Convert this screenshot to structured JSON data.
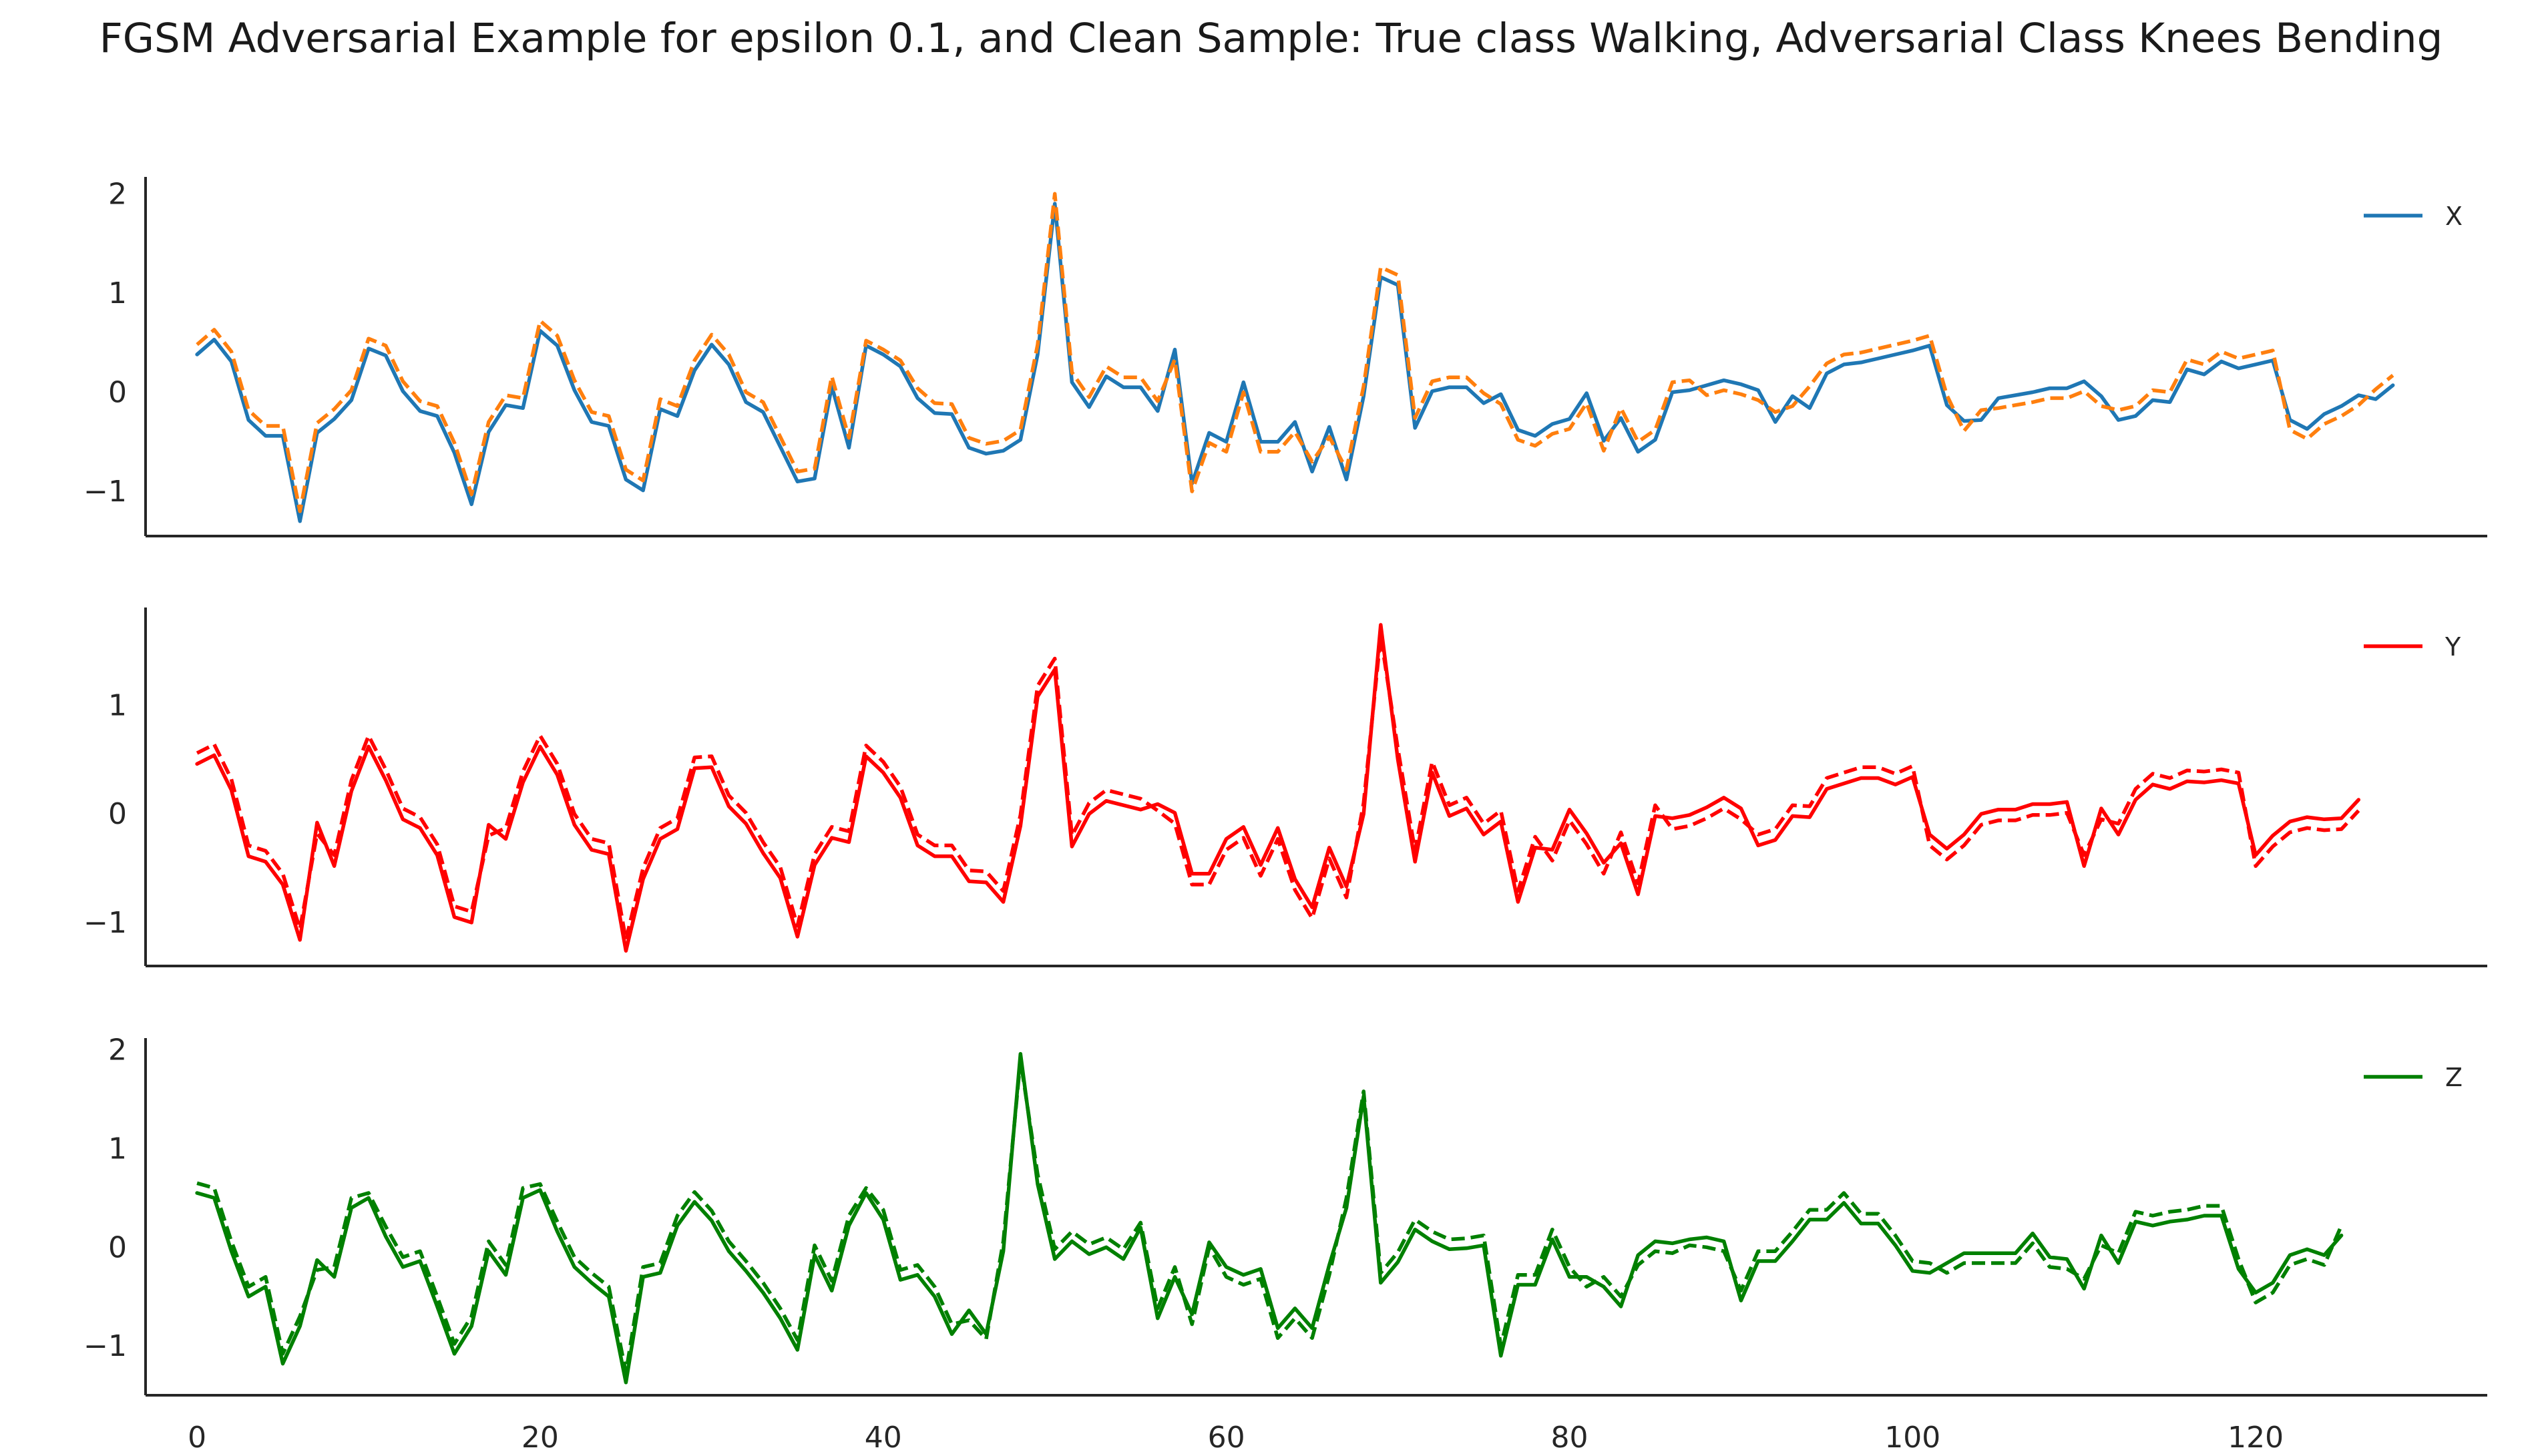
{
  "title": "FGSM Adversarial Example for epsilon 0.1, and Clean Sample: True class Walking, Adversarial Class Knees Bending",
  "chart_data": [
    {
      "type": "line",
      "legend_label": "X",
      "legend_position": "top-right",
      "grid": false,
      "xlim": [
        -3,
        133.5
      ],
      "ylim": [
        -1.45,
        2.17
      ],
      "xticks": [
        0,
        20,
        40,
        60,
        80,
        100,
        120
      ],
      "show_xtick_labels": false,
      "yticks": [
        -1,
        0,
        1,
        2
      ],
      "ytick_labels": [
        "−1",
        "0",
        "1",
        "2"
      ],
      "clean_color": "#1f77b4",
      "adversarial_color": "#ff7f0e",
      "clean": [
        0.38,
        0.53,
        0.31,
        -0.28,
        -0.44,
        -0.44,
        -1.3,
        -0.41,
        -0.27,
        -0.08,
        0.44,
        0.37,
        0.01,
        -0.19,
        -0.24,
        -0.61,
        -1.13,
        -0.4,
        -0.13,
        -0.16,
        0.62,
        0.47,
        0.02,
        -0.3,
        -0.34,
        -0.88,
        -0.99,
        -0.17,
        -0.24,
        0.22,
        0.48,
        0.28,
        -0.1,
        -0.2,
        -0.55,
        -0.9,
        -0.87,
        0.06,
        -0.56,
        0.47,
        0.38,
        0.26,
        -0.06,
        -0.21,
        -0.22,
        -0.56,
        -0.62,
        -0.59,
        -0.48,
        0.38,
        1.9,
        0.1,
        -0.15,
        0.16,
        0.05,
        0.05,
        -0.19,
        0.43,
        -0.92,
        -0.41,
        -0.5,
        0.1,
        -0.5,
        -0.5,
        -0.3,
        -0.8,
        -0.35,
        -0.88,
        -0.04,
        1.16,
        1.08,
        -0.36,
        0.01,
        0.05,
        0.05,
        -0.11,
        -0.02,
        -0.38,
        -0.44,
        -0.32,
        -0.27,
        -0.01,
        -0.49,
        -0.26,
        -0.6,
        -0.48,
        0.0,
        0.02,
        0.07,
        0.12,
        0.08,
        0.02,
        -0.3,
        -0.04,
        -0.16,
        0.19,
        0.28,
        0.3,
        0.34,
        0.38,
        0.42,
        0.47,
        -0.13,
        -0.29,
        -0.28,
        -0.06,
        -0.03,
        0.0,
        0.04,
        0.04,
        0.11,
        -0.04,
        -0.28,
        -0.24,
        -0.08,
        -0.1,
        0.23,
        0.18,
        0.31,
        0.24,
        0.28,
        0.32,
        -0.28,
        -0.37,
        -0.22,
        -0.14,
        -0.03,
        -0.07,
        0.07
      ],
      "adversarial": [
        0.48,
        0.63,
        0.41,
        -0.18,
        -0.34,
        -0.34,
        -1.2,
        -0.31,
        -0.17,
        0.02,
        0.54,
        0.47,
        0.11,
        -0.09,
        -0.14,
        -0.51,
        -1.03,
        -0.3,
        -0.03,
        -0.06,
        0.72,
        0.57,
        0.12,
        -0.2,
        -0.24,
        -0.78,
        -0.89,
        -0.07,
        -0.14,
        0.32,
        0.58,
        0.38,
        0.0,
        -0.1,
        -0.45,
        -0.8,
        -0.77,
        0.16,
        -0.46,
        0.52,
        0.43,
        0.32,
        0.04,
        -0.11,
        -0.12,
        -0.46,
        -0.52,
        -0.49,
        -0.38,
        0.48,
        2.0,
        0.2,
        -0.05,
        0.26,
        0.15,
        0.15,
        -0.09,
        0.33,
        -1.0,
        -0.51,
        -0.6,
        0.0,
        -0.6,
        -0.6,
        -0.4,
        -0.7,
        -0.45,
        -0.78,
        0.06,
        1.26,
        1.18,
        -0.26,
        0.11,
        0.15,
        0.15,
        -0.01,
        -0.12,
        -0.48,
        -0.54,
        -0.42,
        -0.37,
        -0.11,
        -0.59,
        -0.16,
        -0.5,
        -0.38,
        0.1,
        0.12,
        -0.03,
        0.02,
        -0.02,
        -0.08,
        -0.2,
        -0.14,
        0.06,
        0.29,
        0.38,
        0.4,
        0.44,
        0.48,
        0.52,
        0.57,
        -0.03,
        -0.39,
        -0.18,
        -0.16,
        -0.13,
        -0.1,
        -0.06,
        -0.06,
        0.01,
        -0.14,
        -0.18,
        -0.14,
        0.02,
        0.0,
        0.33,
        0.28,
        0.41,
        0.34,
        0.38,
        0.42,
        -0.38,
        -0.47,
        -0.32,
        -0.24,
        -0.13,
        0.03,
        0.17
      ]
    },
    {
      "type": "line",
      "legend_label": "Y",
      "legend_position": "top-right",
      "grid": false,
      "xlim": [
        -3,
        133.5
      ],
      "ylim": [
        -1.4,
        1.9
      ],
      "xticks": [
        0,
        20,
        40,
        60,
        80,
        100,
        120
      ],
      "show_xtick_labels": false,
      "yticks": [
        -1,
        0,
        1
      ],
      "ytick_labels": [
        "−1",
        "0",
        "1"
      ],
      "clean_color": "#ff0000",
      "adversarial_color": "#ff0000",
      "clean": [
        0.46,
        0.54,
        0.22,
        -0.39,
        -0.44,
        -0.65,
        -1.16,
        -0.08,
        -0.48,
        0.21,
        0.62,
        0.31,
        -0.05,
        -0.13,
        -0.38,
        -0.95,
        -1.0,
        -0.1,
        -0.23,
        0.29,
        0.62,
        0.36,
        -0.1,
        -0.33,
        -0.37,
        -1.26,
        -0.6,
        -0.23,
        -0.14,
        0.42,
        0.43,
        0.07,
        -0.09,
        -0.36,
        -0.59,
        -1.13,
        -0.47,
        -0.22,
        -0.26,
        0.53,
        0.38,
        0.15,
        -0.29,
        -0.39,
        -0.39,
        -0.62,
        -0.63,
        -0.81,
        -0.11,
        1.08,
        1.33,
        -0.3,
        0.0,
        0.12,
        0.08,
        0.04,
        0.09,
        0.01,
        -0.55,
        -0.55,
        -0.23,
        -0.12,
        -0.47,
        -0.13,
        -0.6,
        -0.86,
        -0.31,
        -0.67,
        0.0,
        1.74,
        0.5,
        -0.44,
        0.38,
        -0.02,
        0.05,
        -0.19,
        -0.07,
        -0.81,
        -0.31,
        -0.33,
        0.04,
        -0.18,
        -0.45,
        -0.27,
        -0.74,
        -0.02,
        -0.04,
        -0.01,
        0.06,
        0.15,
        0.05,
        -0.29,
        -0.24,
        -0.02,
        -0.03,
        0.23,
        0.28,
        0.33,
        0.33,
        0.27,
        0.34,
        -0.19,
        -0.32,
        -0.19,
        0.0,
        0.04,
        0.04,
        0.09,
        0.09,
        0.11,
        -0.48,
        0.05,
        -0.19,
        0.13,
        0.27,
        0.23,
        0.3,
        0.29,
        0.31,
        0.28,
        -0.38,
        -0.2,
        -0.07,
        -0.03,
        -0.05,
        -0.04,
        0.13
      ],
      "adversarial": [
        0.56,
        0.64,
        0.32,
        -0.29,
        -0.34,
        -0.55,
        -1.06,
        -0.18,
        -0.38,
        0.31,
        0.72,
        0.41,
        0.05,
        -0.03,
        -0.28,
        -0.85,
        -0.9,
        -0.2,
        -0.13,
        0.39,
        0.72,
        0.46,
        0.0,
        -0.23,
        -0.27,
        -1.16,
        -0.5,
        -0.13,
        -0.04,
        0.52,
        0.53,
        0.17,
        0.01,
        -0.26,
        -0.49,
        -1.03,
        -0.37,
        -0.12,
        -0.16,
        0.63,
        0.48,
        0.25,
        -0.19,
        -0.29,
        -0.29,
        -0.52,
        -0.53,
        -0.71,
        -0.01,
        1.18,
        1.43,
        -0.2,
        0.1,
        0.22,
        0.18,
        0.14,
        0.03,
        -0.09,
        -0.65,
        -0.65,
        -0.33,
        -0.22,
        -0.57,
        -0.23,
        -0.7,
        -0.96,
        -0.41,
        -0.77,
        0.1,
        1.64,
        0.6,
        -0.34,
        0.48,
        0.08,
        0.15,
        -0.09,
        0.03,
        -0.71,
        -0.21,
        -0.43,
        -0.06,
        -0.28,
        -0.55,
        -0.17,
        -0.64,
        0.08,
        -0.14,
        -0.11,
        -0.04,
        0.05,
        -0.05,
        -0.19,
        -0.14,
        0.08,
        0.07,
        0.33,
        0.38,
        0.43,
        0.43,
        0.37,
        0.44,
        -0.29,
        -0.42,
        -0.29,
        -0.1,
        -0.06,
        -0.06,
        -0.01,
        -0.01,
        0.01,
        -0.38,
        -0.05,
        -0.09,
        0.23,
        0.37,
        0.33,
        0.4,
        0.39,
        0.41,
        0.38,
        -0.48,
        -0.3,
        -0.17,
        -0.13,
        -0.15,
        -0.14,
        0.03
      ]
    },
    {
      "type": "line",
      "legend_label": "Z",
      "legend_position": "top-right",
      "grid": false,
      "xlim": [
        -3,
        133.5
      ],
      "ylim": [
        -1.5,
        2.12
      ],
      "xticks": [
        0,
        20,
        40,
        60,
        80,
        100,
        120
      ],
      "show_xtick_labels": true,
      "xtick_labels": [
        "0",
        "20",
        "40",
        "60",
        "80",
        "100",
        "120"
      ],
      "yticks": [
        -1,
        0,
        1,
        2
      ],
      "ytick_labels": [
        "−1",
        "0",
        "1",
        "2"
      ],
      "clean_color": "#008000",
      "adversarial_color": "#008000",
      "clean": [
        0.55,
        0.5,
        -0.04,
        -0.5,
        -0.4,
        -1.18,
        -0.8,
        -0.13,
        -0.3,
        0.4,
        0.5,
        0.11,
        -0.2,
        -0.14,
        -0.6,
        -1.08,
        -0.8,
        -0.04,
        -0.28,
        0.5,
        0.58,
        0.16,
        -0.2,
        -0.36,
        -0.5,
        -1.37,
        -0.3,
        -0.26,
        0.22,
        0.46,
        0.27,
        -0.04,
        -0.24,
        -0.46,
        -0.72,
        -1.04,
        -0.08,
        -0.44,
        0.22,
        0.55,
        0.28,
        -0.33,
        -0.28,
        -0.5,
        -0.88,
        -0.64,
        -0.88,
        -0.04,
        1.96,
        0.64,
        -0.12,
        0.06,
        -0.07,
        0.0,
        -0.12,
        0.2,
        -0.72,
        -0.3,
        -0.68,
        0.05,
        -0.2,
        -0.28,
        -0.22,
        -0.82,
        -0.62,
        -0.82,
        -0.18,
        0.4,
        1.53,
        -0.36,
        -0.15,
        0.18,
        0.06,
        -0.02,
        -0.01,
        0.02,
        -1.1,
        -0.38,
        -0.38,
        0.08,
        -0.3,
        -0.3,
        -0.4,
        -0.6,
        -0.08,
        0.06,
        0.04,
        0.08,
        0.1,
        0.06,
        -0.54,
        -0.14,
        -0.14,
        0.06,
        0.28,
        0.28,
        0.45,
        0.24,
        0.24,
        0.02,
        -0.24,
        -0.26,
        -0.16,
        -0.06,
        -0.06,
        -0.06,
        -0.06,
        0.14,
        -0.1,
        -0.12,
        -0.42,
        0.12,
        -0.16,
        0.26,
        0.22,
        0.26,
        0.28,
        0.32,
        0.32,
        -0.22,
        -0.46,
        -0.36,
        -0.08,
        -0.02,
        -0.08,
        0.12
      ],
      "adversarial": [
        0.65,
        0.6,
        0.06,
        -0.4,
        -0.3,
        -1.08,
        -0.7,
        -0.23,
        -0.2,
        0.5,
        0.55,
        0.21,
        -0.1,
        -0.04,
        -0.5,
        -0.98,
        -0.7,
        0.06,
        -0.18,
        0.6,
        0.64,
        0.26,
        -0.1,
        -0.26,
        -0.4,
        -1.27,
        -0.2,
        -0.16,
        0.32,
        0.56,
        0.37,
        0.06,
        -0.14,
        -0.36,
        -0.62,
        -0.94,
        0.02,
        -0.34,
        0.32,
        0.6,
        0.38,
        -0.23,
        -0.18,
        -0.4,
        -0.78,
        -0.74,
        -0.93,
        0.06,
        1.9,
        0.74,
        -0.02,
        0.16,
        0.03,
        0.1,
        -0.02,
        0.25,
        -0.62,
        -0.2,
        -0.78,
        0.0,
        -0.3,
        -0.38,
        -0.32,
        -0.92,
        -0.72,
        -0.92,
        -0.28,
        0.5,
        1.58,
        -0.26,
        -0.05,
        0.28,
        0.16,
        0.08,
        0.09,
        0.12,
        -1.0,
        -0.28,
        -0.28,
        0.18,
        -0.2,
        -0.4,
        -0.3,
        -0.5,
        -0.18,
        -0.04,
        -0.06,
        0.02,
        0.0,
        -0.04,
        -0.44,
        -0.04,
        -0.04,
        0.16,
        0.38,
        0.38,
        0.55,
        0.34,
        0.34,
        0.12,
        -0.14,
        -0.16,
        -0.26,
        -0.16,
        -0.16,
        -0.16,
        -0.16,
        0.04,
        -0.2,
        -0.22,
        -0.32,
        0.02,
        -0.06,
        0.36,
        0.32,
        0.36,
        0.38,
        0.42,
        0.42,
        -0.12,
        -0.56,
        -0.46,
        -0.18,
        -0.12,
        -0.18,
        0.22
      ]
    }
  ]
}
